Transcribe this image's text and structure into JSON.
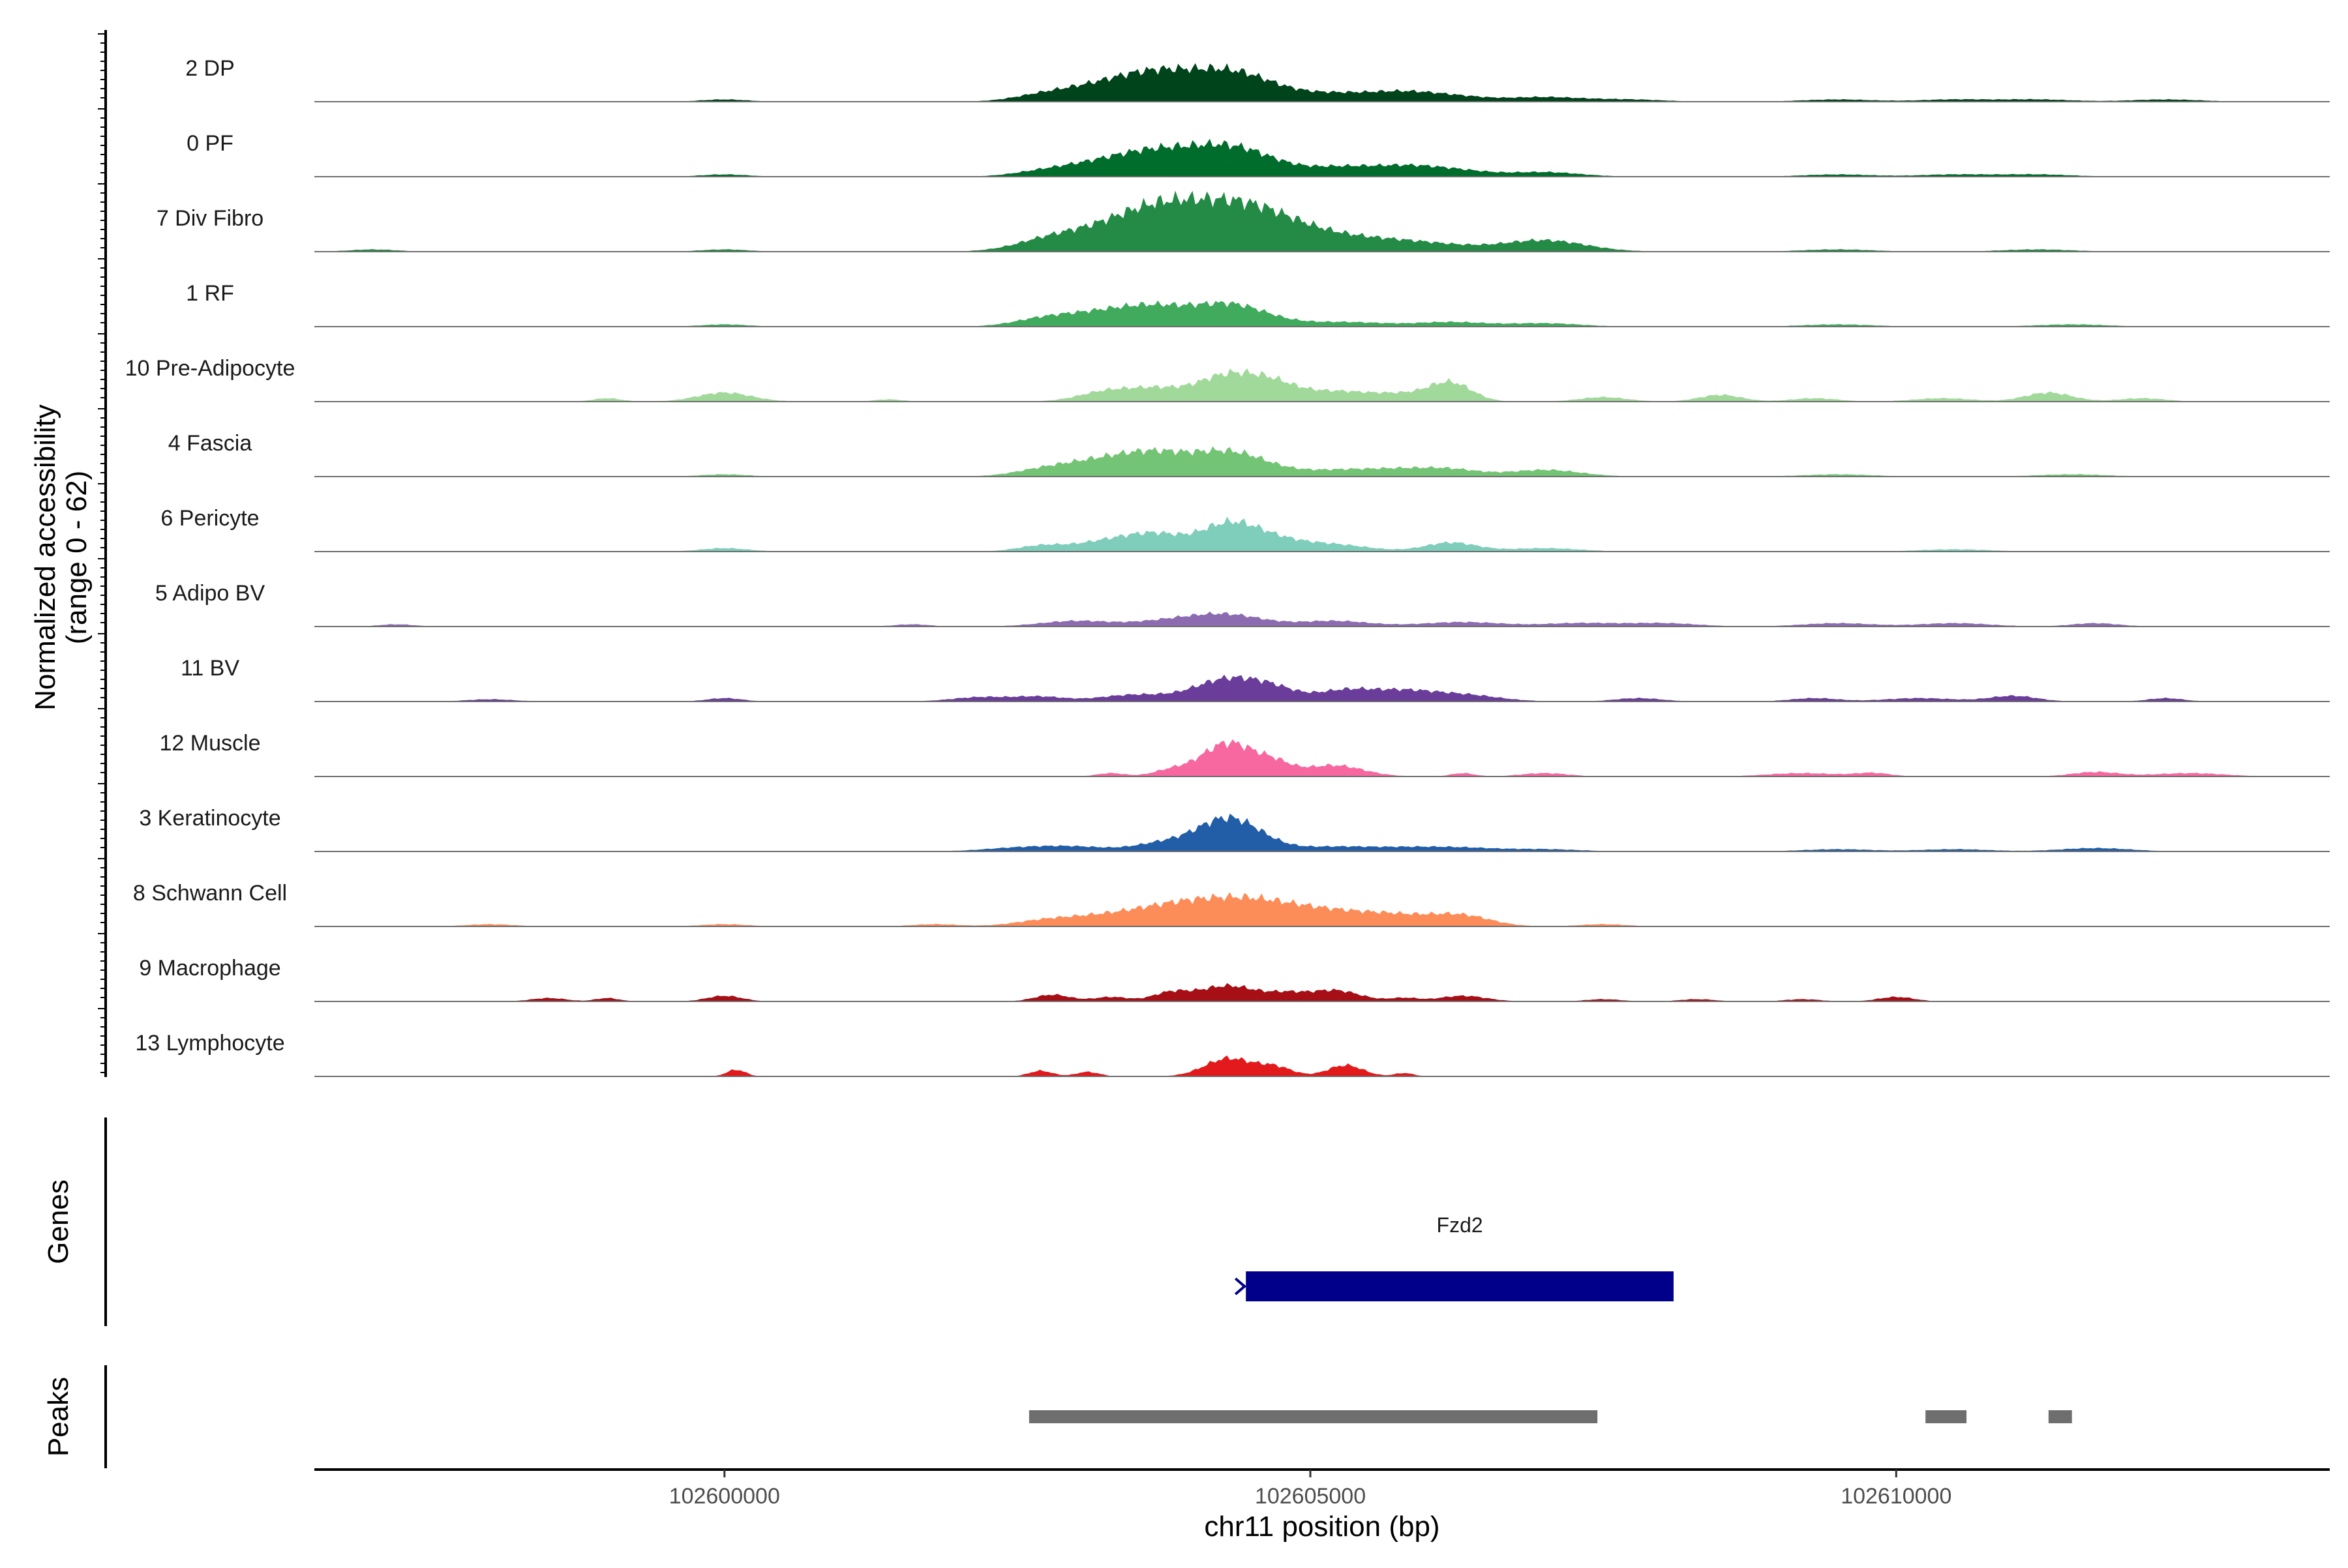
{
  "chart_data": {
    "type": "area",
    "description_tracks": "coverage tracks per cell group",
    "y_axis_title_lines": [
      "Normalized accessibility",
      "(range 0 - 62)"
    ],
    "x_axis_title": "chr11 position (bp)",
    "x_range": [
      102596500,
      102613700
    ],
    "x_ticks": [
      102600000,
      102605000,
      102610000
    ],
    "x_tick_labels": [
      "102600000",
      "102605000",
      "102610000"
    ],
    "y_range": [
      0,
      62
    ],
    "tracks": [
      {
        "name": "2 DP",
        "color": "#00441b",
        "peaks": [
          [
            102603300,
            16,
            380
          ],
          [
            102603700,
            12,
            280
          ],
          [
            102604300,
            27,
            380
          ],
          [
            102605300,
            7,
            350
          ],
          [
            102605800,
            5,
            250
          ],
          [
            102606200,
            5,
            300
          ],
          [
            102607000,
            4,
            300
          ],
          [
            102602700,
            4,
            250
          ],
          [
            102600000,
            2,
            200
          ],
          [
            102607700,
            2,
            300
          ],
          [
            102609500,
            2,
            300
          ],
          [
            102610500,
            2,
            300
          ],
          [
            102611200,
            2,
            300
          ],
          [
            102612300,
            2,
            300
          ]
        ]
      },
      {
        "name": "0 PF",
        "color": "#006d2c",
        "peaks": [
          [
            102603300,
            14,
            380
          ],
          [
            102603700,
            10,
            280
          ],
          [
            102604300,
            27,
            380
          ],
          [
            102605300,
            8,
            300
          ],
          [
            102605800,
            6,
            250
          ],
          [
            102606200,
            6,
            300
          ],
          [
            102607000,
            4,
            300
          ],
          [
            102602700,
            3,
            250
          ],
          [
            102600000,
            2,
            200
          ],
          [
            102609500,
            2,
            300
          ],
          [
            102610500,
            2,
            300
          ],
          [
            102611200,
            2,
            300
          ]
        ]
      },
      {
        "name": "7 Div Fibro",
        "color": "#238b45",
        "peaks": [
          [
            102603200,
            18,
            420
          ],
          [
            102603700,
            22,
            330
          ],
          [
            102604300,
            36,
            420
          ],
          [
            102604800,
            12,
            400
          ],
          [
            102605400,
            8,
            400
          ],
          [
            102606000,
            6,
            400
          ],
          [
            102607000,
            10,
            350
          ],
          [
            102602700,
            4,
            250
          ],
          [
            102597000,
            2,
            200
          ],
          [
            102600000,
            2,
            200
          ],
          [
            102609500,
            2,
            300
          ],
          [
            102611200,
            2,
            300
          ]
        ]
      },
      {
        "name": "1 RF",
        "color": "#41ab5d",
        "peaks": [
          [
            102603300,
            14,
            380
          ],
          [
            102603700,
            8,
            250
          ],
          [
            102604300,
            20,
            330
          ],
          [
            102605300,
            4,
            350
          ],
          [
            102606200,
            4,
            300
          ],
          [
            102607000,
            3,
            300
          ],
          [
            102602700,
            5,
            250
          ],
          [
            102600000,
            2,
            200
          ],
          [
            102609500,
            2,
            300
          ],
          [
            102611500,
            2,
            300
          ]
        ]
      },
      {
        "name": "10 Pre-Adipocyte",
        "color": "#a1d99b",
        "peaks": [
          [
            102603300,
            10,
            250
          ],
          [
            102603700,
            8,
            200
          ],
          [
            102604300,
            24,
            280
          ],
          [
            102604700,
            10,
            200
          ],
          [
            102605200,
            9,
            300
          ],
          [
            102605800,
            6,
            250
          ],
          [
            102606200,
            16,
            180
          ],
          [
            102599000,
            3,
            120
          ],
          [
            102600000,
            8,
            230
          ],
          [
            102601400,
            2,
            120
          ],
          [
            102607500,
            4,
            200
          ],
          [
            102608500,
            6,
            180
          ],
          [
            102609300,
            3,
            200
          ],
          [
            102610400,
            3,
            250
          ],
          [
            102611300,
            8,
            200
          ],
          [
            102612100,
            3,
            200
          ]
        ]
      },
      {
        "name": "4 Fascia",
        "color": "#74c476",
        "peaks": [
          [
            102603300,
            16,
            380
          ],
          [
            102603700,
            10,
            250
          ],
          [
            102604300,
            22,
            330
          ],
          [
            102605300,
            6,
            350
          ],
          [
            102605800,
            4,
            250
          ],
          [
            102606200,
            6,
            250
          ],
          [
            102607000,
            6,
            300
          ],
          [
            102602700,
            4,
            250
          ],
          [
            102600000,
            2,
            200
          ],
          [
            102609500,
            2,
            300
          ],
          [
            102611500,
            2,
            300
          ]
        ]
      },
      {
        "name": "6 Pericyte",
        "color": "#7fcdbb",
        "peaks": [
          [
            102603300,
            10,
            280
          ],
          [
            102603700,
            12,
            220
          ],
          [
            102604300,
            24,
            250
          ],
          [
            102604700,
            8,
            250
          ],
          [
            102605200,
            6,
            300
          ],
          [
            102606200,
            8,
            220
          ],
          [
            102607000,
            3,
            300
          ],
          [
            102602700,
            5,
            200
          ],
          [
            102600000,
            3,
            200
          ],
          [
            102610500,
            2,
            300
          ]
        ]
      },
      {
        "name": "5 Adipo BV",
        "color": "#8c6bb1",
        "peaks": [
          [
            102603000,
            5,
            300
          ],
          [
            102603800,
            5,
            300
          ],
          [
            102604300,
            10,
            300
          ],
          [
            102605200,
            5,
            300
          ],
          [
            102606300,
            4,
            350
          ],
          [
            102607300,
            3,
            300
          ],
          [
            102608000,
            3,
            300
          ],
          [
            102609500,
            3,
            300
          ],
          [
            102610500,
            3,
            300
          ],
          [
            102611700,
            3,
            200
          ],
          [
            102601600,
            2,
            150
          ],
          [
            102597200,
            2,
            150
          ]
        ]
      },
      {
        "name": "11 BV",
        "color": "#6a3d9a",
        "peaks": [
          [
            102603500,
            6,
            300
          ],
          [
            102604300,
            20,
            280
          ],
          [
            102604700,
            8,
            200
          ],
          [
            102605300,
            10,
            250
          ],
          [
            102605800,
            8,
            250
          ],
          [
            102606300,
            6,
            300
          ],
          [
            102602200,
            4,
            250
          ],
          [
            102602700,
            4,
            200
          ],
          [
            102600000,
            3,
            150
          ],
          [
            102598000,
            2,
            200
          ],
          [
            102607800,
            3,
            200
          ],
          [
            102609300,
            3,
            200
          ],
          [
            102610200,
            3,
            300
          ],
          [
            102611000,
            5,
            200
          ],
          [
            102612300,
            3,
            150
          ]
        ]
      },
      {
        "name": "12 Muscle",
        "color": "#f768a1",
        "peaks": [
          [
            102604300,
            30,
            230
          ],
          [
            102604700,
            9,
            150
          ],
          [
            102605200,
            10,
            250
          ],
          [
            102603800,
            5,
            150
          ],
          [
            102603300,
            3,
            120
          ],
          [
            102606300,
            3,
            100
          ],
          [
            102607000,
            3,
            200
          ],
          [
            102609200,
            3,
            300
          ],
          [
            102609800,
            3,
            150
          ],
          [
            102611700,
            4,
            200
          ],
          [
            102612500,
            3,
            300
          ]
        ]
      },
      {
        "name": "3 Keratinocyte",
        "color": "#225ea8",
        "peaks": [
          [
            102604300,
            30,
            280
          ],
          [
            102603700,
            6,
            220
          ],
          [
            102603000,
            4,
            300
          ],
          [
            102602500,
            3,
            300
          ],
          [
            102605200,
            4,
            300
          ],
          [
            102605800,
            3,
            300
          ],
          [
            102606300,
            3,
            300
          ],
          [
            102607000,
            2,
            300
          ],
          [
            102611700,
            3,
            300
          ],
          [
            102609500,
            2,
            300
          ],
          [
            102610500,
            2,
            300
          ]
        ]
      },
      {
        "name": "8 Schwann Cell",
        "color": "#fc8d59",
        "peaks": [
          [
            102603300,
            10,
            420
          ],
          [
            102603800,
            8,
            300
          ],
          [
            102604300,
            20,
            380
          ],
          [
            102604800,
            10,
            350
          ],
          [
            102605300,
            9,
            350
          ],
          [
            102605800,
            7,
            300
          ],
          [
            102606300,
            9,
            250
          ],
          [
            102602700,
            3,
            250
          ],
          [
            102601800,
            2,
            200
          ],
          [
            102600000,
            2,
            200
          ],
          [
            102598000,
            2,
            200
          ],
          [
            102607500,
            2,
            200
          ]
        ]
      },
      {
        "name": "9 Macrophage",
        "color": "#a50f15",
        "peaks": [
          [
            102604300,
            14,
            260
          ],
          [
            102605200,
            10,
            220
          ],
          [
            102603800,
            7,
            150
          ],
          [
            102602800,
            6,
            150
          ],
          [
            102603300,
            4,
            150
          ],
          [
            102606300,
            5,
            200
          ],
          [
            102600000,
            5,
            150
          ],
          [
            102598500,
            3,
            150
          ],
          [
            102599000,
            3,
            100
          ],
          [
            102604800,
            5,
            150
          ],
          [
            102605800,
            3,
            120
          ],
          [
            102607500,
            2,
            150
          ],
          [
            102608300,
            2,
            150
          ],
          [
            102609200,
            2,
            150
          ],
          [
            102610000,
            4,
            150
          ]
        ]
      },
      {
        "name": "13 Lymphocyte",
        "color": "#e31a1c",
        "peaks": [
          [
            102604300,
            16,
            200
          ],
          [
            102604700,
            8,
            150
          ],
          [
            102605300,
            10,
            150
          ],
          [
            102603100,
            4,
            100
          ],
          [
            102602700,
            5,
            100
          ],
          [
            102600100,
            6,
            80
          ],
          [
            102605800,
            3,
            80
          ]
        ]
      }
    ],
    "gene": {
      "name": "Fzd2",
      "start": 102604450,
      "end": 102608100,
      "strand": "+",
      "color": "#00008b"
    },
    "peaks_track": [
      [
        102602600,
        102607450
      ],
      [
        102610250,
        102610600
      ],
      [
        102611300,
        102611500
      ]
    ],
    "panel_labels": [
      "Genes",
      "Peaks"
    ]
  }
}
